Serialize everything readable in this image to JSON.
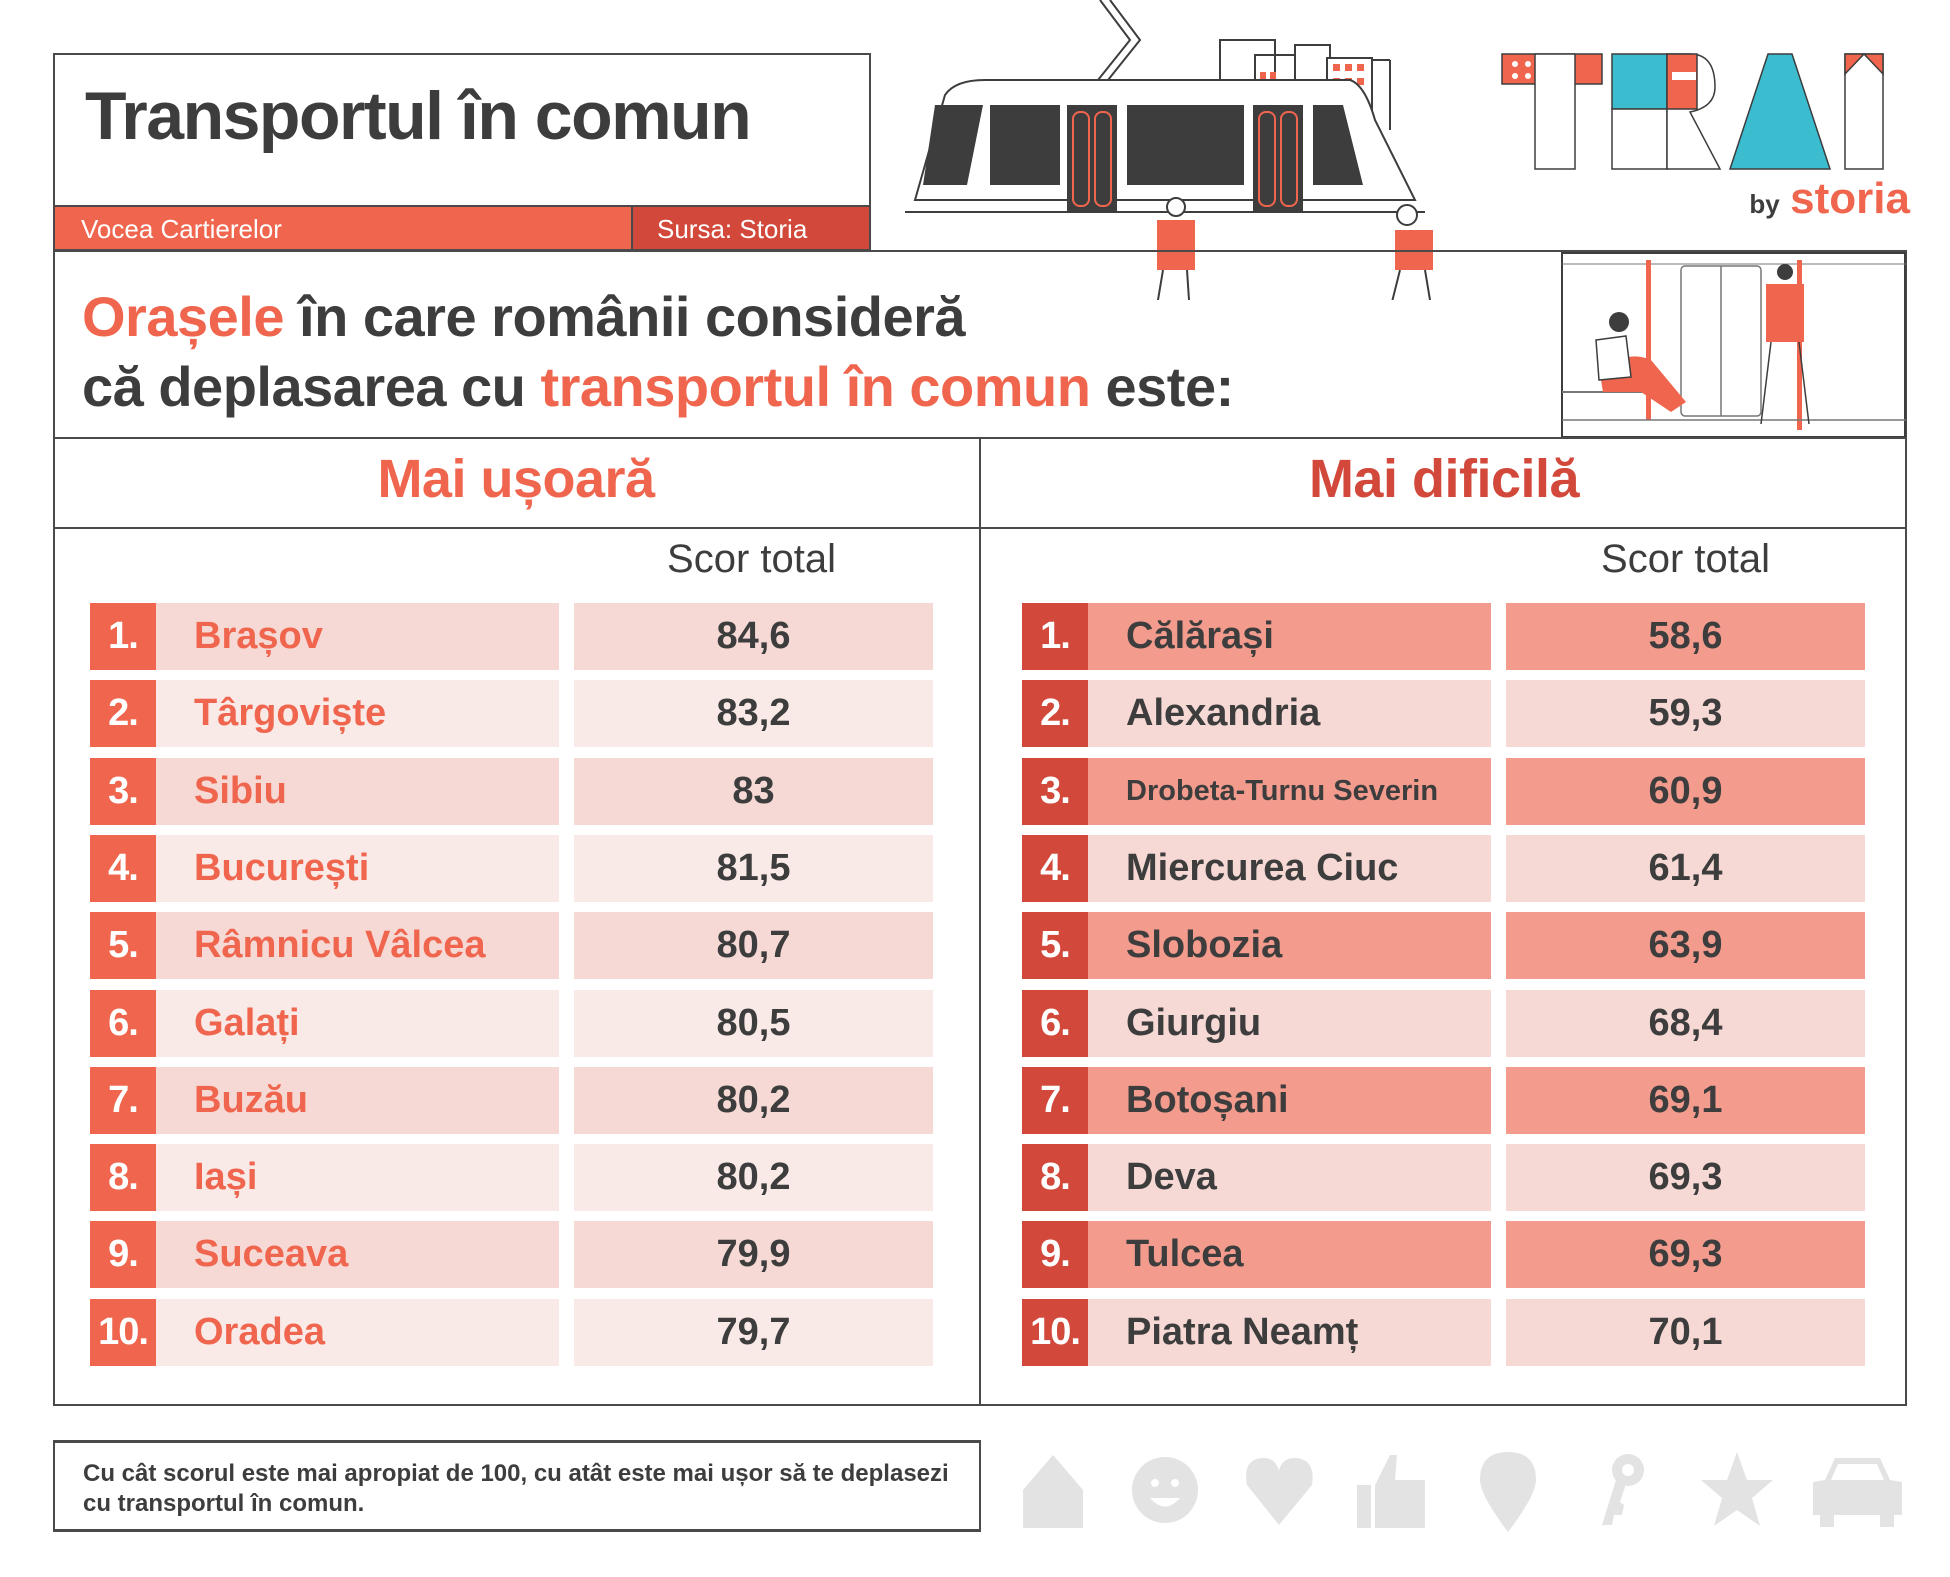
{
  "header": {
    "title": "Transportul în comun",
    "tag_left": "Vocea Cartierelor",
    "tag_right": "Sursa: Storia"
  },
  "brand": {
    "logo_letters": "TRAI",
    "by": "by",
    "name": "storia"
  },
  "subtitle": {
    "line1_highlight": "Orașele",
    "line1_rest": " în care românii consideră",
    "line2_start": "că deplasarea cu ",
    "line2_highlight": "transportul în comun",
    "line2_end": " este:"
  },
  "colors": {
    "accent": "#f0654d",
    "accent_dark": "#d2483a",
    "text_dark": "#3d3d3d",
    "row_light_a": "#f6d9d5",
    "row_light_b": "#f9e9e7",
    "row_strong": "#f39c8e",
    "icon_gray": "#e3e3e3"
  },
  "tables": {
    "easier": {
      "heading": "Mai ușoară",
      "score_header": "Scor total",
      "rows": [
        {
          "rank": "1.",
          "city": "Brașov",
          "score": "84,6"
        },
        {
          "rank": "2.",
          "city": "Târgoviște",
          "score": "83,2"
        },
        {
          "rank": "3.",
          "city": "Sibiu",
          "score": "83"
        },
        {
          "rank": "4.",
          "city": "București",
          "score": "81,5"
        },
        {
          "rank": "5.",
          "city": "Râmnicu Vâlcea",
          "score": "80,7"
        },
        {
          "rank": "6.",
          "city": "Galați",
          "score": "80,5"
        },
        {
          "rank": "7.",
          "city": "Buzău",
          "score": "80,2"
        },
        {
          "rank": "8.",
          "city": "Iași",
          "score": "80,2"
        },
        {
          "rank": "9.",
          "city": "Suceava",
          "score": "79,9"
        },
        {
          "rank": "10.",
          "city": "Oradea",
          "score": "79,7"
        }
      ]
    },
    "harder": {
      "heading": "Mai dificilă",
      "score_header": "Scor total",
      "rows": [
        {
          "rank": "1.",
          "city": "Călărași",
          "score": "58,6"
        },
        {
          "rank": "2.",
          "city": "Alexandria",
          "score": "59,3"
        },
        {
          "rank": "3.",
          "city": "Drobeta-Turnu Severin",
          "score": "60,9"
        },
        {
          "rank": "4.",
          "city": "Miercurea Ciuc",
          "score": "61,4"
        },
        {
          "rank": "5.",
          "city": "Slobozia",
          "score": "63,9"
        },
        {
          "rank": "6.",
          "city": "Giurgiu",
          "score": "68,4"
        },
        {
          "rank": "7.",
          "city": "Botoșani",
          "score": "69,1"
        },
        {
          "rank": "8.",
          "city": "Deva",
          "score": "69,3"
        },
        {
          "rank": "9.",
          "city": "Tulcea",
          "score": "69,3"
        },
        {
          "rank": "10.",
          "city": "Piatra Neamț",
          "score": "70,1"
        }
      ]
    }
  },
  "footer": {
    "note": "Cu cât scorul este mai apropiat de 100, cu atât este mai ușor să te deplasezi cu transportul în comun.",
    "icons": [
      "home-icon",
      "smiley-icon",
      "heart-icon",
      "thumbs-up-icon",
      "location-pin-icon",
      "key-icon",
      "star-icon",
      "car-icon"
    ]
  }
}
